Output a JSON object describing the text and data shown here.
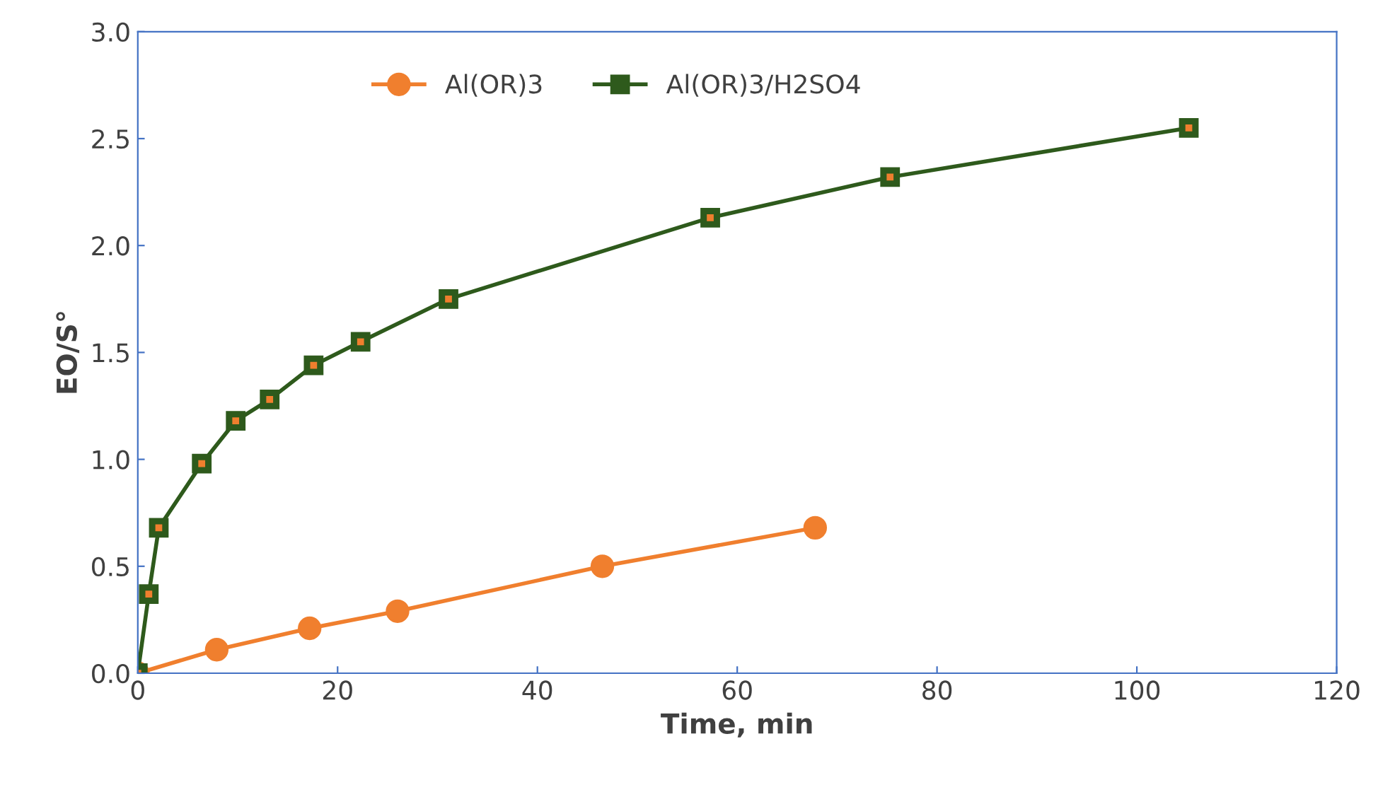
{
  "chart_data": {
    "type": "line",
    "xlabel": "Time, min",
    "ylabel": "EO/S°",
    "xlim": [
      0,
      120
    ],
    "xticks": [
      0,
      20,
      40,
      60,
      80,
      100,
      120
    ],
    "ylim": [
      0,
      3.0
    ],
    "yticks": [
      {
        "value": 0,
        "label": "0.0"
      },
      {
        "value": 0.5,
        "label": "0.5"
      },
      {
        "value": 1.0,
        "label": "1.0"
      },
      {
        "value": 1.5,
        "label": "1.5"
      },
      {
        "value": 2.0,
        "label": "2.0"
      },
      {
        "value": 2.5,
        "label": "2.5"
      },
      {
        "value": 3.0,
        "label": "3.0"
      }
    ],
    "grid": false,
    "legend": "top",
    "line_style": "solid",
    "series": [
      {
        "name": "Al(OR)3",
        "color": "#f07f2e",
        "marker": "circle",
        "x": [
          0,
          7.9,
          17.2,
          26.0,
          46.5,
          67.8
        ],
        "values": [
          0,
          0.11,
          0.21,
          0.29,
          0.5,
          0.68
        ]
      },
      {
        "name": "Al(OR)3/H2SO4",
        "color": "#2e5a1c",
        "marker": "square",
        "x": [
          0,
          1.1,
          2.1,
          6.4,
          9.8,
          13.2,
          17.6,
          22.3,
          31.1,
          57.3,
          75.3,
          105.2
        ],
        "values": [
          0,
          0.37,
          0.68,
          0.98,
          1.18,
          1.28,
          1.44,
          1.55,
          1.75,
          2.13,
          2.32,
          2.55
        ]
      }
    ]
  }
}
